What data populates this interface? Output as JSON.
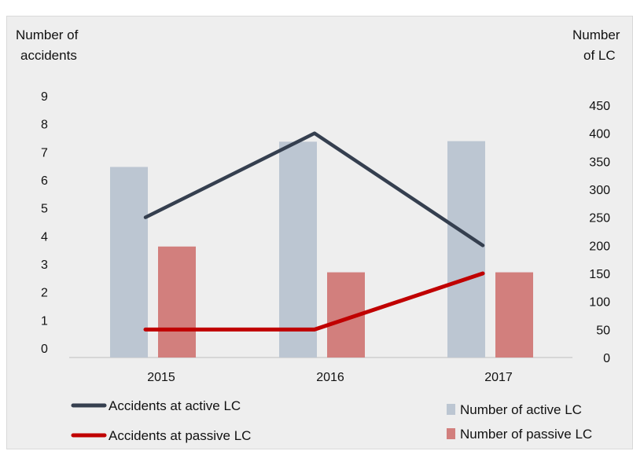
{
  "chart_data": {
    "type": "bar",
    "categories": [
      "2015",
      "2016",
      "2017"
    ],
    "left_axis": {
      "label_line1": "Number of",
      "label_line2": "accidents",
      "ylim": [
        0,
        9
      ],
      "ticks": [
        "0",
        "1",
        "2",
        "3",
        "4",
        "5",
        "6",
        "7",
        "8",
        "9"
      ]
    },
    "right_axis": {
      "label_line1": "Number",
      "label_line2": "of LC",
      "ylim": [
        0,
        450
      ],
      "ticks": [
        "0",
        "50",
        "100",
        "150",
        "200",
        "250",
        "300",
        "350",
        "400",
        "450"
      ]
    },
    "bar_series": [
      {
        "name": "Number of active LC",
        "axis": "right",
        "color": "#bcc6d2",
        "values": [
          340,
          385,
          386
        ]
      },
      {
        "name": "Number of passive LC",
        "axis": "right",
        "color": "#d27f7d",
        "values": [
          198,
          152,
          152
        ]
      }
    ],
    "line_series": [
      {
        "name": "Accidents at active LC",
        "axis": "left",
        "color": "#353f4f",
        "values": [
          5,
          8,
          4
        ]
      },
      {
        "name": "Accidents at passive LC",
        "axis": "left",
        "color": "#c00000",
        "values": [
          1,
          1,
          3
        ]
      }
    ],
    "grid": false,
    "legend_position": "bottom"
  }
}
